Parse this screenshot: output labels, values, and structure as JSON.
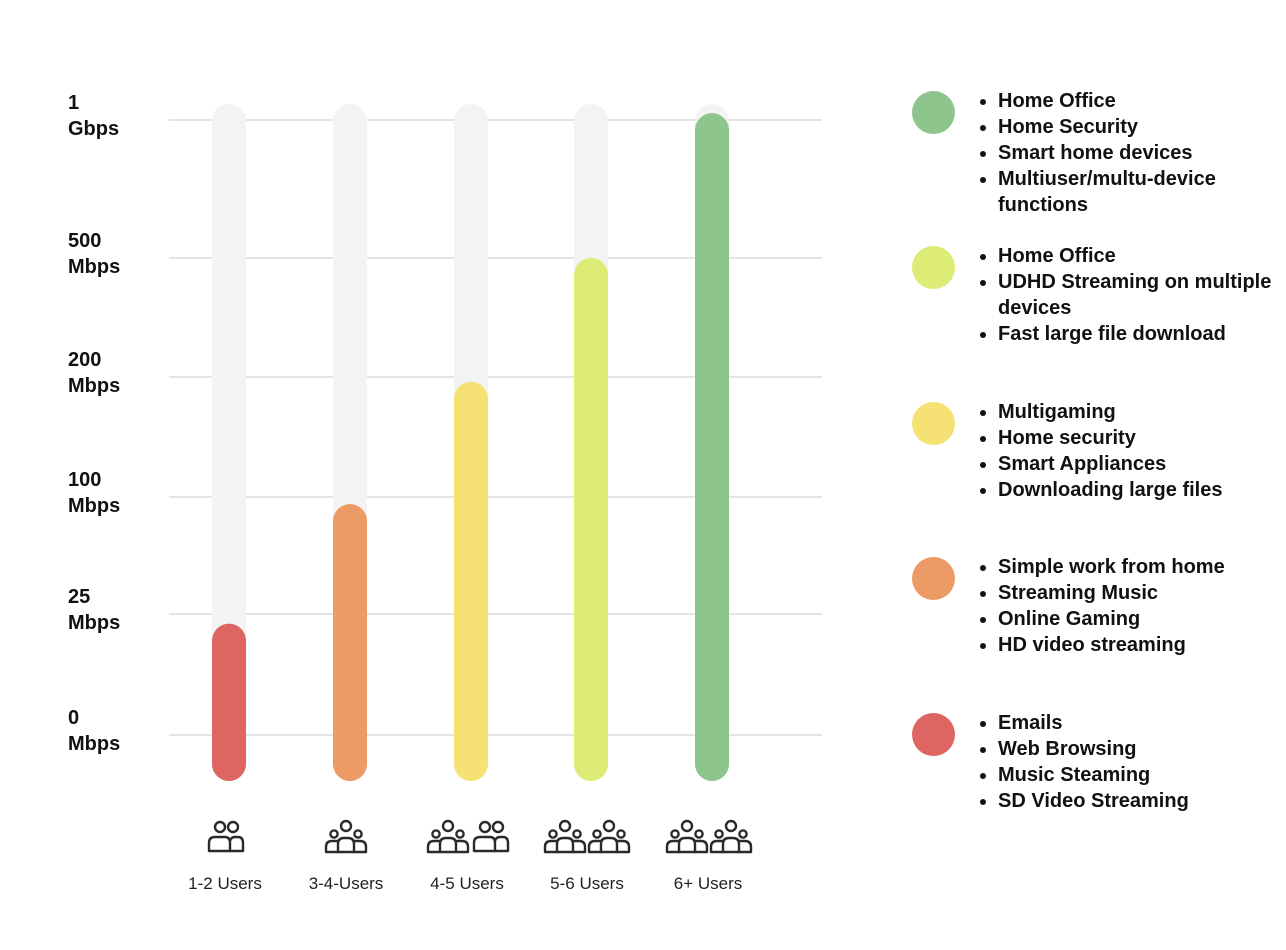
{
  "chart_data": {
    "type": "bar",
    "y_tick_labels": [
      [
        "0",
        "Mbps"
      ],
      [
        "25",
        "Mbps"
      ],
      [
        "100",
        "Mbps"
      ],
      [
        "200",
        "Mbps"
      ],
      [
        "500",
        "Mbps"
      ],
      [
        "1",
        "Gbps"
      ]
    ],
    "y_scale": "ordinal tick levels (0, 25 Mbps, 100 Mbps, 200 Mbps, 500 Mbps, 1 Gbps)",
    "categories": [
      "1-2 Users",
      "3-4-Users",
      "4-5 Users",
      "5-6 Users",
      "6+ Users"
    ],
    "values": [
      0.92,
      1.94,
      2.96,
      4.0,
      5.05
    ],
    "value_units": "tick index (0 = 0 Mbps ... 5 = 1 Gbps)",
    "ylim": [
      0,
      5
    ],
    "grid": true,
    "bar_colors": [
      "#dd6663",
      "#ec9a66",
      "#f5e174",
      "#dcec74",
      "#8dc58d"
    ],
    "track_color": "#f3f3f3",
    "grid_color": "#e4e4e4",
    "category_icons": [
      "two-people-icon",
      "group-of-three-icon",
      "group-and-pair-icon",
      "two-groups-icon",
      "two-groups-icon"
    ],
    "legend": [
      {
        "color": "#8dc58d",
        "items": [
          "Home Office",
          "Home Security",
          "Smart home devices",
          "Multiuser/multu-device functions"
        ]
      },
      {
        "color": "#dcec74",
        "items": [
          "Home Office",
          "UDHD Streaming on multiple devices",
          "Fast large file download"
        ]
      },
      {
        "color": "#f5e174",
        "items": [
          "Multigaming",
          "Home security",
          "Smart Appliances",
          "Downloading large files"
        ]
      },
      {
        "color": "#ec9a66",
        "items": [
          "Simple work from home",
          "Streaming Music",
          "Online Gaming",
          "HD video streaming"
        ]
      },
      {
        "color": "#dd6663",
        "items": [
          "Emails",
          "Web Browsing",
          "Music Steaming",
          "SD Video Streaming"
        ]
      }
    ]
  }
}
